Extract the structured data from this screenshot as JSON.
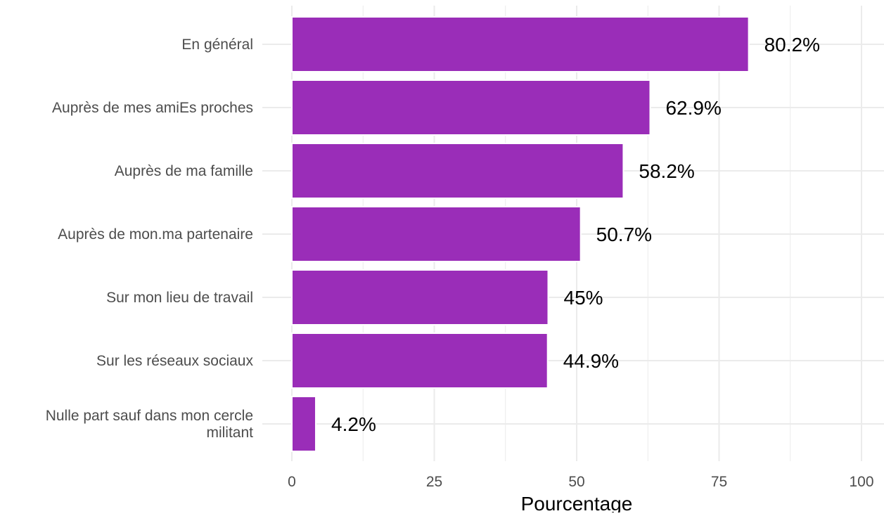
{
  "chart_data": {
    "type": "bar",
    "orientation": "horizontal",
    "categories": [
      "En général",
      "Auprès de mes amiEs proches",
      "Auprès de ma famille",
      "Auprès de mon.ma partenaire",
      "Sur mon lieu de travail",
      "Sur les réseaux sociaux",
      "Nulle part sauf dans mon cercle militant"
    ],
    "category_lines": [
      [
        "En général"
      ],
      [
        "Auprès de mes amiEs proches"
      ],
      [
        "Auprès de ma famille"
      ],
      [
        "Auprès de mon.ma partenaire"
      ],
      [
        "Sur mon lieu de travail"
      ],
      [
        "Sur les réseaux sociaux"
      ],
      [
        "Nulle part sauf dans mon cercle",
        "militant"
      ]
    ],
    "values": [
      80.2,
      62.9,
      58.2,
      50.7,
      45,
      44.9,
      4.2
    ],
    "value_labels": [
      "80.2%",
      "62.9%",
      "58.2%",
      "50.7%",
      "45%",
      "44.9%",
      "4.2%"
    ],
    "xlabel": "Pourcentage",
    "ylabel": "",
    "title": "",
    "xlim": [
      0,
      100
    ],
    "xticks": [
      0,
      25,
      50,
      75,
      100
    ],
    "grid": true,
    "bar_color": "#9a2db8",
    "bar_outline_color": "#ffffff",
    "grid_color": "#ebebeb"
  }
}
